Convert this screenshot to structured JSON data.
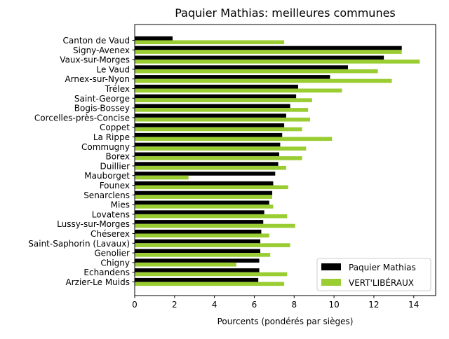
{
  "chart_data": {
    "type": "bar",
    "orientation": "horizontal",
    "title": "Paquier Mathias: meilleures communes",
    "xlabel": "Pourcents (pondérés par sièges)",
    "ylabel": "",
    "xlim": [
      0,
      15.1
    ],
    "xticks": [
      0,
      2,
      4,
      6,
      8,
      10,
      12,
      14
    ],
    "xtick_labels": [
      "0",
      "2",
      "4",
      "6",
      "8",
      "10",
      "12",
      "14"
    ],
    "grid": false,
    "legend_position": "lower-right",
    "categories": [
      "Canton de Vaud",
      "Signy-Avenex",
      "Vaux-sur-Morges",
      "Le Vaud",
      "Arnex-sur-Nyon",
      "Trélex",
      "Saint-George",
      "Bogis-Bossey",
      "Corcelles-près-Concise",
      "Coppet",
      "La Rippe",
      "Commugny",
      "Borex",
      "Duillier",
      "Mauborget",
      "Founex",
      "Senarclens",
      "Mies",
      "Lovatens",
      "Lussy-sur-Morges",
      "Chéserex",
      "Saint-Saphorin (Lavaux)",
      "Genolier",
      "Chigny",
      "Echandens",
      "Arzier-Le Muids"
    ],
    "series": [
      {
        "name": "Paquier Mathias",
        "color": "#000000",
        "values": [
          1.9,
          13.4,
          12.5,
          10.7,
          9.8,
          8.2,
          8.1,
          7.8,
          7.6,
          7.5,
          7.4,
          7.3,
          7.25,
          7.2,
          7.05,
          6.95,
          6.9,
          6.75,
          6.5,
          6.45,
          6.35,
          6.3,
          6.3,
          6.25,
          6.25,
          6.2
        ]
      },
      {
        "name": "VERT'LIBÉRAUX",
        "color": "#9acd32",
        "values": [
          7.5,
          13.4,
          14.3,
          12.2,
          12.9,
          10.4,
          8.9,
          8.7,
          8.8,
          8.4,
          9.9,
          8.6,
          8.4,
          7.6,
          2.7,
          7.7,
          6.9,
          6.95,
          7.65,
          8.05,
          6.75,
          7.8,
          6.8,
          5.1,
          7.65,
          7.5
        ]
      }
    ]
  }
}
